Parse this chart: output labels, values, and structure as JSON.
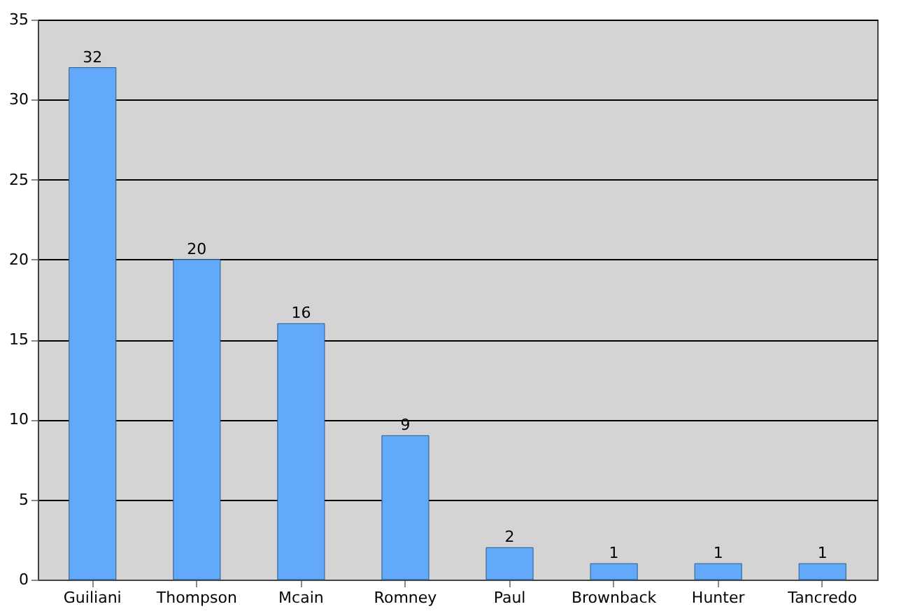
{
  "chart_data": {
    "type": "bar",
    "categories": [
      "Guiliani",
      "Thompson",
      "Mcain",
      "Romney",
      "Paul",
      "Brownback",
      "Hunter",
      "Tancredo"
    ],
    "values": [
      32,
      20,
      16,
      9,
      2,
      1,
      1,
      1
    ],
    "color": "#62a9f9",
    "ylim": [
      0,
      35
    ],
    "yticks": [
      0,
      5,
      10,
      15,
      20,
      25,
      30,
      35
    ],
    "grid": "y",
    "data_labels": true
  }
}
